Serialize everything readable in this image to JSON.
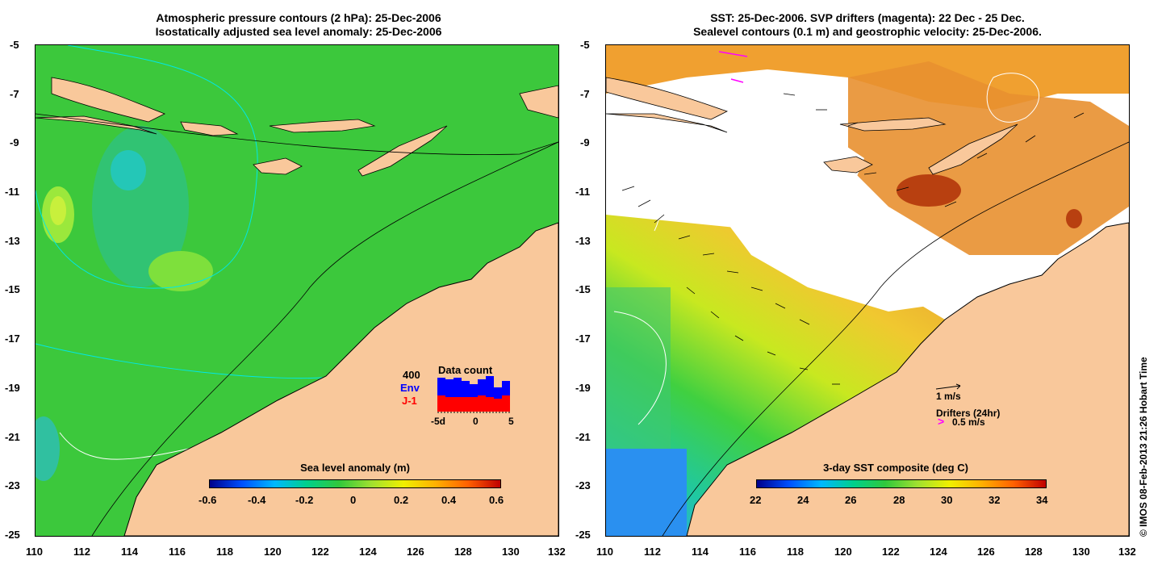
{
  "left_panel": {
    "title_line1": "Atmospheric pressure contours (2 hPa): 25-Dec-2006",
    "title_line2": "Isostatically adjusted sea level anomaly: 25-Dec-2006",
    "y_ticks": [
      "-5",
      "-7",
      "-9",
      "-11",
      "-13",
      "-15",
      "-17",
      "-19",
      "-21",
      "-23",
      "-25"
    ],
    "x_ticks": [
      "110",
      "112",
      "114",
      "116",
      "118",
      "120",
      "122",
      "124",
      "126",
      "128",
      "130",
      "132"
    ],
    "colorbar_title": "Sea level anomaly (m)",
    "colorbar_labels": [
      "-0.6",
      "-0.4",
      "-0.2",
      "0",
      "0.2",
      "0.4",
      "0.6"
    ],
    "inset": {
      "title": "Data count",
      "ymax_label": "400",
      "legend_env": "Env",
      "legend_j1": "J-1",
      "x_labels": [
        "-5d",
        "0",
        "5"
      ],
      "env_color": "#0000ff",
      "j1_color": "#ff0000"
    }
  },
  "right_panel": {
    "title_line1": "SST: 25-Dec-2006. SVP drifters (magenta): 22 Dec - 25 Dec.",
    "title_line2": "Sealevel contours (0.1 m) and geostrophic velocity: 25-Dec-2006.",
    "y_ticks": [
      "-5",
      "-7",
      "-9",
      "-11",
      "-13",
      "-15",
      "-17",
      "-19",
      "-21",
      "-23",
      "-25"
    ],
    "x_ticks": [
      "110",
      "112",
      "114",
      "116",
      "118",
      "120",
      "122",
      "124",
      "126",
      "128",
      "130",
      "132"
    ],
    "colorbar_title": "3-day SST composite (deg C)",
    "colorbar_labels": [
      "22",
      "24",
      "26",
      "28",
      "30",
      "32",
      "34"
    ],
    "velocity_scale": "1 m/s",
    "drifters_label": "Drifters (24hr)",
    "drifters_scale": "0.5 m/s",
    "drifter_color": "#ff00ff"
  },
  "copyright": "© IMOS 08-Feb-2013 21:26 Hobart Time",
  "colors": {
    "land": "#f9c89b",
    "ocean_green": "#3cc83c",
    "cloud": "#ffffff"
  }
}
